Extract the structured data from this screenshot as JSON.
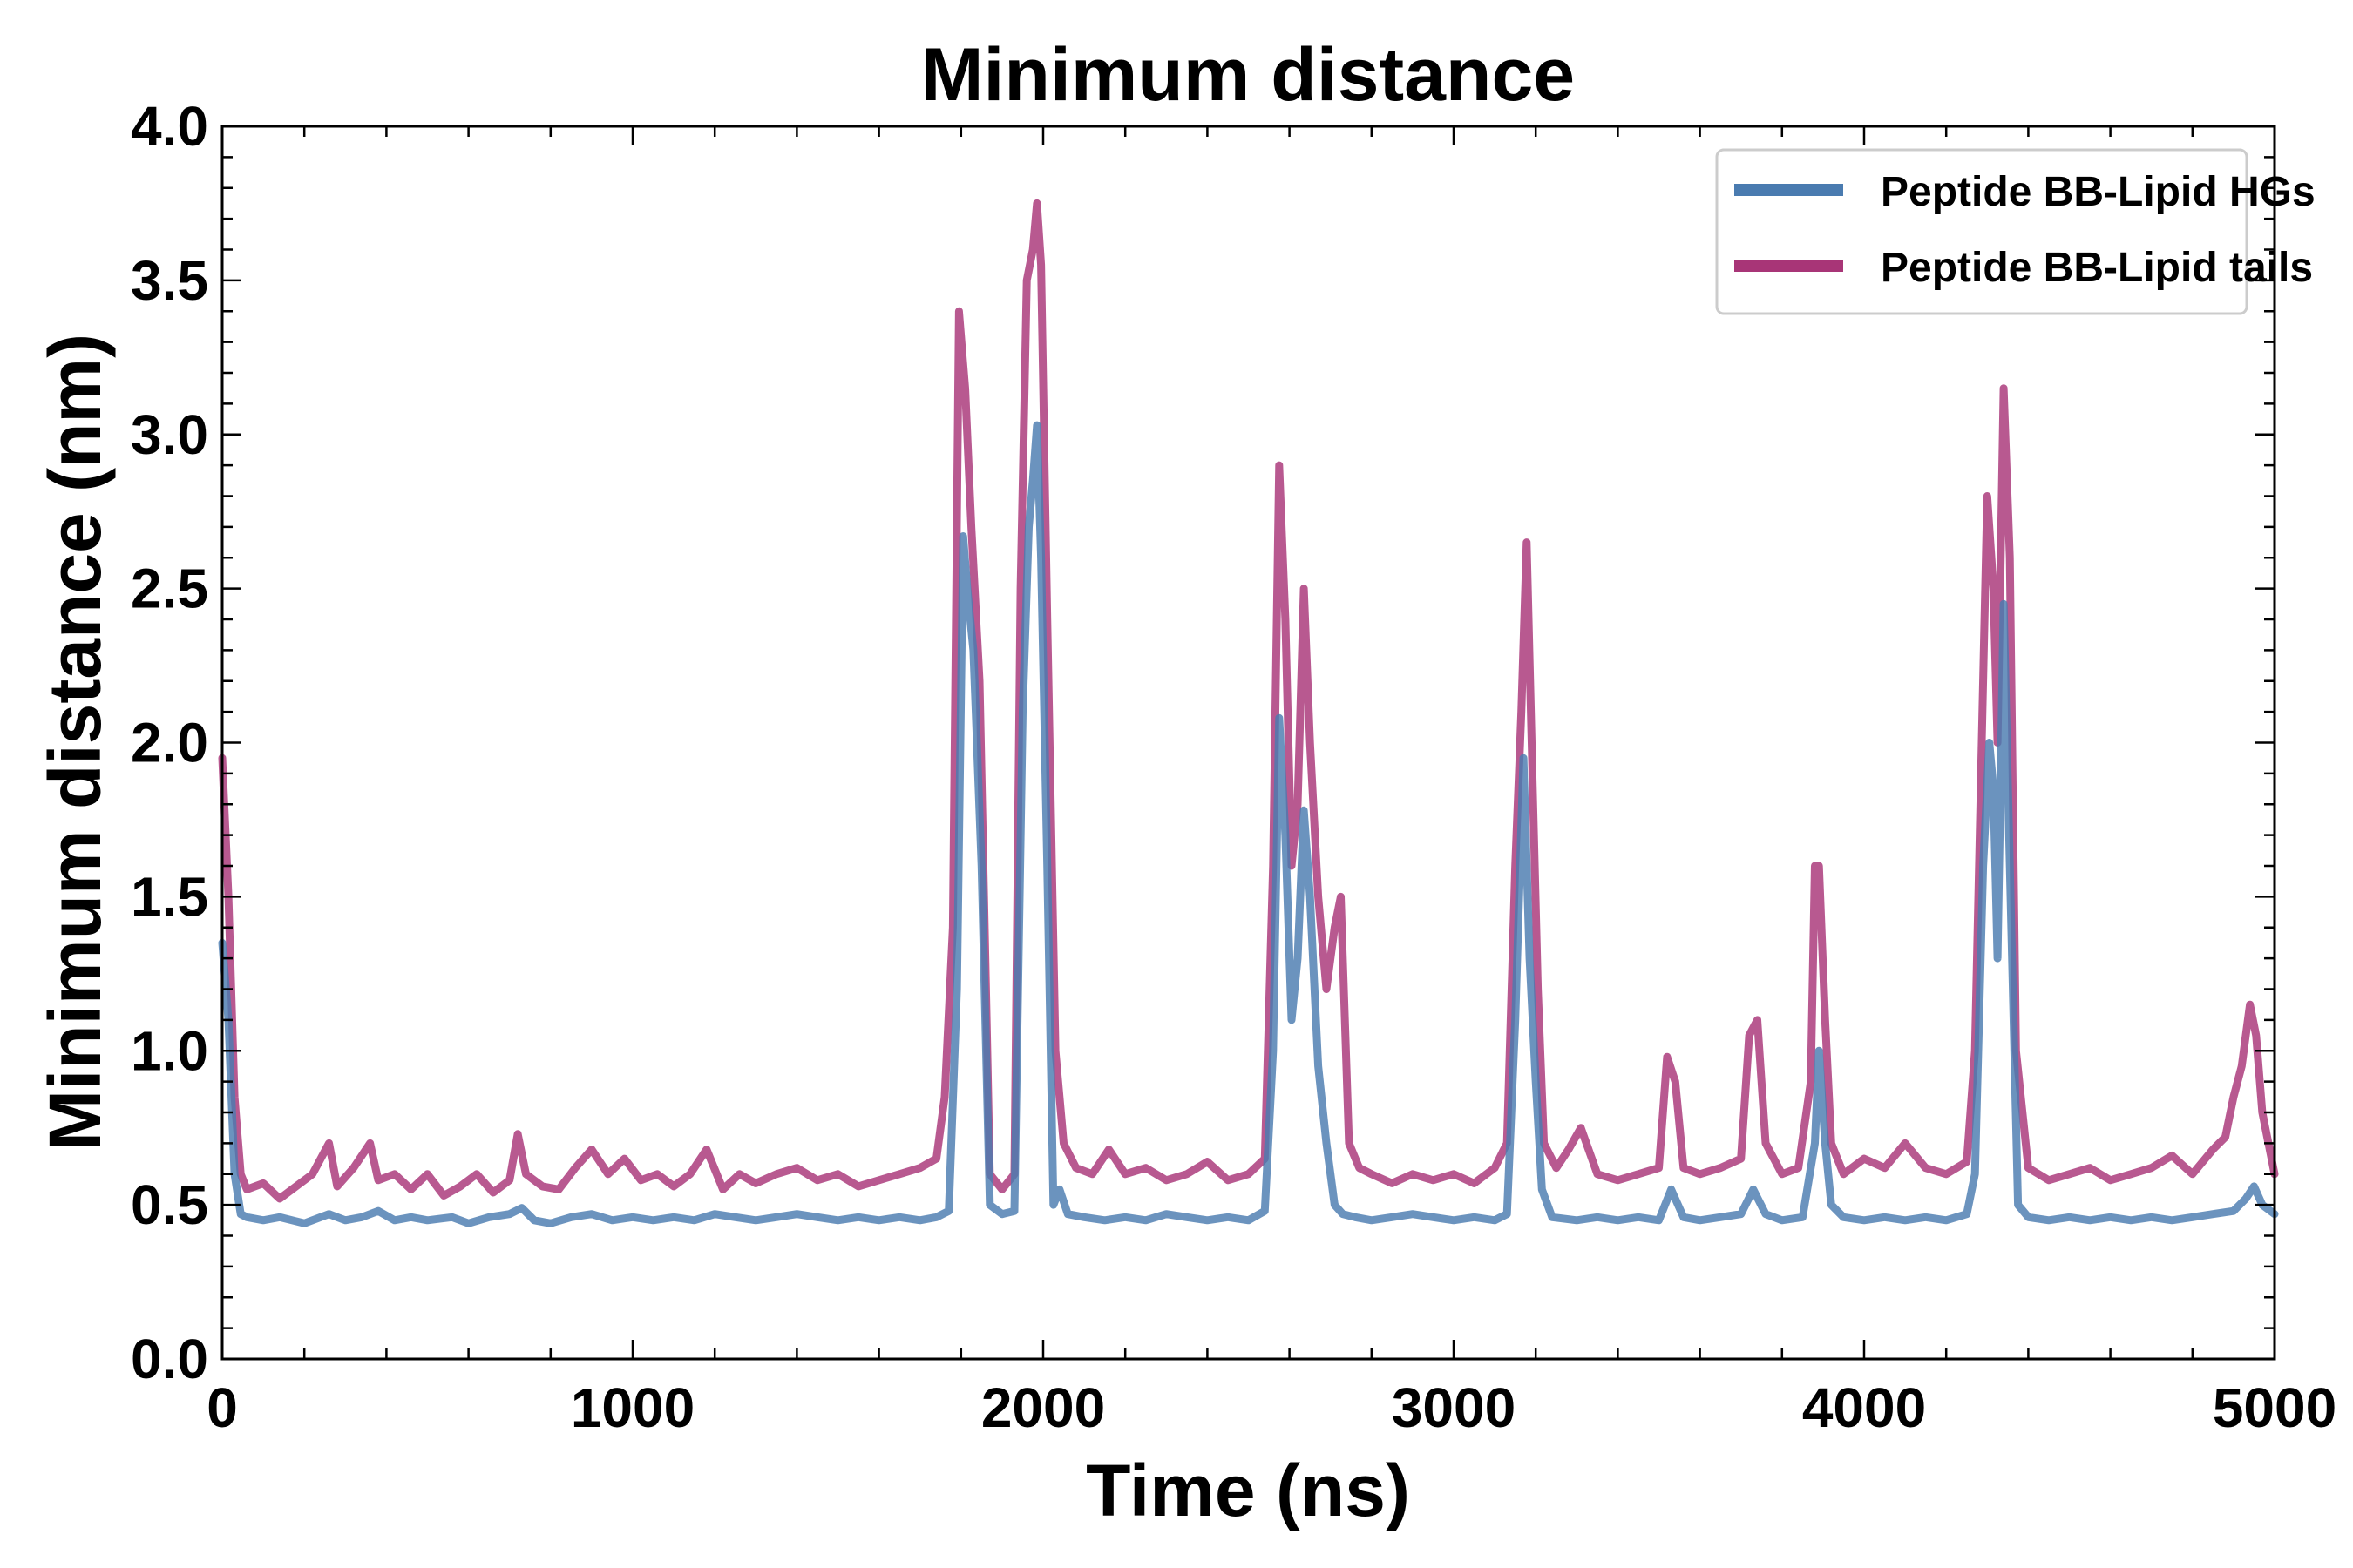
{
  "chart_data": {
    "type": "line",
    "title": "Minimum distance",
    "xlabel": "Time (ns)",
    "ylabel": "Minimum distance (nm)",
    "xlim": [
      0,
      5000
    ],
    "ylim": [
      0.0,
      4.0
    ],
    "xticks": [
      0,
      1000,
      2000,
      3000,
      4000,
      5000
    ],
    "xtick_labels": [
      "0",
      "1000",
      "2000",
      "3000",
      "4000",
      "5000"
    ],
    "yticks": [
      0.0,
      0.5,
      1.0,
      1.5,
      2.0,
      2.5,
      3.0,
      3.5,
      4.0
    ],
    "ytick_labels": [
      "0.0",
      "0.5",
      "1.0",
      "1.5",
      "2.0",
      "2.5",
      "3.0",
      "3.5",
      "4.0"
    ],
    "legend_position": "top-right",
    "grid": false,
    "series": [
      {
        "name": "Peptide BB-Lipid HGs",
        "color": "#4a7bb0",
        "points": [
          [
            0,
            1.35
          ],
          [
            15,
            1.1
          ],
          [
            30,
            0.6
          ],
          [
            45,
            0.47
          ],
          [
            60,
            0.46
          ],
          [
            100,
            0.45
          ],
          [
            140,
            0.46
          ],
          [
            200,
            0.44
          ],
          [
            260,
            0.47
          ],
          [
            300,
            0.45
          ],
          [
            340,
            0.46
          ],
          [
            380,
            0.48
          ],
          [
            420,
            0.45
          ],
          [
            460,
            0.46
          ],
          [
            500,
            0.45
          ],
          [
            560,
            0.46
          ],
          [
            600,
            0.44
          ],
          [
            650,
            0.46
          ],
          [
            700,
            0.47
          ],
          [
            730,
            0.49
          ],
          [
            760,
            0.45
          ],
          [
            800,
            0.44
          ],
          [
            850,
            0.46
          ],
          [
            900,
            0.47
          ],
          [
            950,
            0.45
          ],
          [
            1000,
            0.46
          ],
          [
            1050,
            0.45
          ],
          [
            1100,
            0.46
          ],
          [
            1150,
            0.45
          ],
          [
            1200,
            0.47
          ],
          [
            1250,
            0.46
          ],
          [
            1300,
            0.45
          ],
          [
            1350,
            0.46
          ],
          [
            1400,
            0.47
          ],
          [
            1450,
            0.46
          ],
          [
            1500,
            0.45
          ],
          [
            1550,
            0.46
          ],
          [
            1600,
            0.45
          ],
          [
            1650,
            0.46
          ],
          [
            1700,
            0.45
          ],
          [
            1740,
            0.46
          ],
          [
            1770,
            0.48
          ],
          [
            1790,
            1.2
          ],
          [
            1805,
            2.67
          ],
          [
            1815,
            2.5
          ],
          [
            1830,
            2.3
          ],
          [
            1850,
            1.6
          ],
          [
            1870,
            0.5
          ],
          [
            1900,
            0.47
          ],
          [
            1930,
            0.48
          ],
          [
            1950,
            2.1
          ],
          [
            1965,
            2.7
          ],
          [
            1975,
            2.85
          ],
          [
            1985,
            3.03
          ],
          [
            1995,
            2.6
          ],
          [
            2010,
            1.6
          ],
          [
            2025,
            0.5
          ],
          [
            2040,
            0.55
          ],
          [
            2060,
            0.47
          ],
          [
            2100,
            0.46
          ],
          [
            2150,
            0.45
          ],
          [
            2200,
            0.46
          ],
          [
            2250,
            0.45
          ],
          [
            2300,
            0.47
          ],
          [
            2350,
            0.46
          ],
          [
            2400,
            0.45
          ],
          [
            2450,
            0.46
          ],
          [
            2500,
            0.45
          ],
          [
            2540,
            0.48
          ],
          [
            2560,
            1.0
          ],
          [
            2575,
            2.08
          ],
          [
            2590,
            1.7
          ],
          [
            2605,
            1.1
          ],
          [
            2620,
            1.3
          ],
          [
            2635,
            1.78
          ],
          [
            2650,
            1.5
          ],
          [
            2670,
            0.95
          ],
          [
            2690,
            0.7
          ],
          [
            2710,
            0.5
          ],
          [
            2730,
            0.47
          ],
          [
            2760,
            0.46
          ],
          [
            2800,
            0.45
          ],
          [
            2850,
            0.46
          ],
          [
            2900,
            0.47
          ],
          [
            2950,
            0.46
          ],
          [
            3000,
            0.45
          ],
          [
            3050,
            0.46
          ],
          [
            3100,
            0.45
          ],
          [
            3130,
            0.47
          ],
          [
            3150,
            1.1
          ],
          [
            3170,
            1.95
          ],
          [
            3185,
            1.3
          ],
          [
            3200,
            0.9
          ],
          [
            3215,
            0.55
          ],
          [
            3240,
            0.46
          ],
          [
            3300,
            0.45
          ],
          [
            3350,
            0.46
          ],
          [
            3400,
            0.45
          ],
          [
            3450,
            0.46
          ],
          [
            3500,
            0.45
          ],
          [
            3530,
            0.55
          ],
          [
            3560,
            0.46
          ],
          [
            3600,
            0.45
          ],
          [
            3650,
            0.46
          ],
          [
            3700,
            0.47
          ],
          [
            3730,
            0.55
          ],
          [
            3760,
            0.47
          ],
          [
            3800,
            0.45
          ],
          [
            3850,
            0.46
          ],
          [
            3880,
            0.7
          ],
          [
            3890,
            1.0
          ],
          [
            3905,
            0.7
          ],
          [
            3920,
            0.5
          ],
          [
            3950,
            0.46
          ],
          [
            4000,
            0.45
          ],
          [
            4050,
            0.46
          ],
          [
            4100,
            0.45
          ],
          [
            4150,
            0.46
          ],
          [
            4200,
            0.45
          ],
          [
            4250,
            0.47
          ],
          [
            4270,
            0.6
          ],
          [
            4290,
            1.6
          ],
          [
            4305,
            2.0
          ],
          [
            4315,
            1.85
          ],
          [
            4325,
            1.3
          ],
          [
            4340,
            2.45
          ],
          [
            4355,
            1.6
          ],
          [
            4375,
            0.5
          ],
          [
            4400,
            0.46
          ],
          [
            4450,
            0.45
          ],
          [
            4500,
            0.46
          ],
          [
            4550,
            0.45
          ],
          [
            4600,
            0.46
          ],
          [
            4650,
            0.45
          ],
          [
            4700,
            0.46
          ],
          [
            4750,
            0.45
          ],
          [
            4800,
            0.46
          ],
          [
            4850,
            0.47
          ],
          [
            4900,
            0.48
          ],
          [
            4930,
            0.52
          ],
          [
            4950,
            0.56
          ],
          [
            4970,
            0.5
          ],
          [
            5000,
            0.47
          ]
        ]
      },
      {
        "name": "Peptide BB-Lipid tails",
        "color": "#a83577",
        "points": [
          [
            0,
            1.95
          ],
          [
            15,
            1.5
          ],
          [
            30,
            0.85
          ],
          [
            45,
            0.6
          ],
          [
            60,
            0.55
          ],
          [
            100,
            0.57
          ],
          [
            140,
            0.52
          ],
          [
            180,
            0.56
          ],
          [
            220,
            0.6
          ],
          [
            260,
            0.7
          ],
          [
            280,
            0.56
          ],
          [
            320,
            0.62
          ],
          [
            360,
            0.7
          ],
          [
            380,
            0.58
          ],
          [
            420,
            0.6
          ],
          [
            460,
            0.55
          ],
          [
            500,
            0.6
          ],
          [
            540,
            0.53
          ],
          [
            580,
            0.56
          ],
          [
            620,
            0.6
          ],
          [
            660,
            0.54
          ],
          [
            700,
            0.58
          ],
          [
            720,
            0.73
          ],
          [
            740,
            0.6
          ],
          [
            780,
            0.56
          ],
          [
            820,
            0.55
          ],
          [
            860,
            0.62
          ],
          [
            900,
            0.68
          ],
          [
            940,
            0.6
          ],
          [
            980,
            0.65
          ],
          [
            1020,
            0.58
          ],
          [
            1060,
            0.6
          ],
          [
            1100,
            0.56
          ],
          [
            1140,
            0.6
          ],
          [
            1180,
            0.68
          ],
          [
            1220,
            0.55
          ],
          [
            1260,
            0.6
          ],
          [
            1300,
            0.57
          ],
          [
            1350,
            0.6
          ],
          [
            1400,
            0.62
          ],
          [
            1450,
            0.58
          ],
          [
            1500,
            0.6
          ],
          [
            1550,
            0.56
          ],
          [
            1600,
            0.58
          ],
          [
            1650,
            0.6
          ],
          [
            1700,
            0.62
          ],
          [
            1740,
            0.65
          ],
          [
            1760,
            0.85
          ],
          [
            1780,
            1.4
          ],
          [
            1795,
            3.4
          ],
          [
            1810,
            3.15
          ],
          [
            1825,
            2.7
          ],
          [
            1845,
            2.2
          ],
          [
            1870,
            0.6
          ],
          [
            1900,
            0.55
          ],
          [
            1930,
            0.6
          ],
          [
            1945,
            2.5
          ],
          [
            1960,
            3.5
          ],
          [
            1975,
            3.6
          ],
          [
            1985,
            3.75
          ],
          [
            1995,
            3.55
          ],
          [
            2010,
            2.4
          ],
          [
            2030,
            1.0
          ],
          [
            2050,
            0.7
          ],
          [
            2080,
            0.62
          ],
          [
            2120,
            0.6
          ],
          [
            2160,
            0.68
          ],
          [
            2200,
            0.6
          ],
          [
            2250,
            0.62
          ],
          [
            2300,
            0.58
          ],
          [
            2350,
            0.6
          ],
          [
            2400,
            0.64
          ],
          [
            2450,
            0.58
          ],
          [
            2500,
            0.6
          ],
          [
            2540,
            0.65
          ],
          [
            2560,
            1.6
          ],
          [
            2575,
            2.9
          ],
          [
            2590,
            2.4
          ],
          [
            2605,
            1.6
          ],
          [
            2620,
            1.8
          ],
          [
            2635,
            2.5
          ],
          [
            2650,
            2.0
          ],
          [
            2670,
            1.5
          ],
          [
            2690,
            1.2
          ],
          [
            2710,
            1.4
          ],
          [
            2725,
            1.5
          ],
          [
            2745,
            0.7
          ],
          [
            2770,
            0.62
          ],
          [
            2800,
            0.6
          ],
          [
            2850,
            0.57
          ],
          [
            2900,
            0.6
          ],
          [
            2950,
            0.58
          ],
          [
            3000,
            0.6
          ],
          [
            3050,
            0.57
          ],
          [
            3100,
            0.62
          ],
          [
            3130,
            0.7
          ],
          [
            3150,
            1.6
          ],
          [
            3165,
            2.1
          ],
          [
            3178,
            2.65
          ],
          [
            3190,
            2.0
          ],
          [
            3205,
            1.2
          ],
          [
            3220,
            0.7
          ],
          [
            3250,
            0.62
          ],
          [
            3280,
            0.68
          ],
          [
            3310,
            0.75
          ],
          [
            3350,
            0.6
          ],
          [
            3400,
            0.58
          ],
          [
            3450,
            0.6
          ],
          [
            3500,
            0.62
          ],
          [
            3520,
            0.98
          ],
          [
            3540,
            0.9
          ],
          [
            3560,
            0.62
          ],
          [
            3600,
            0.6
          ],
          [
            3650,
            0.62
          ],
          [
            3700,
            0.65
          ],
          [
            3720,
            1.05
          ],
          [
            3740,
            1.1
          ],
          [
            3760,
            0.7
          ],
          [
            3800,
            0.6
          ],
          [
            3840,
            0.62
          ],
          [
            3870,
            0.9
          ],
          [
            3880,
            1.6
          ],
          [
            3890,
            1.6
          ],
          [
            3905,
            1.1
          ],
          [
            3920,
            0.7
          ],
          [
            3950,
            0.6
          ],
          [
            4000,
            0.65
          ],
          [
            4050,
            0.62
          ],
          [
            4100,
            0.7
          ],
          [
            4150,
            0.62
          ],
          [
            4200,
            0.6
          ],
          [
            4250,
            0.64
          ],
          [
            4270,
            1.0
          ],
          [
            4285,
            1.9
          ],
          [
            4300,
            2.8
          ],
          [
            4315,
            2.5
          ],
          [
            4325,
            2.0
          ],
          [
            4340,
            3.15
          ],
          [
            4355,
            2.6
          ],
          [
            4370,
            1.0
          ],
          [
            4400,
            0.62
          ],
          [
            4450,
            0.58
          ],
          [
            4500,
            0.6
          ],
          [
            4550,
            0.62
          ],
          [
            4600,
            0.58
          ],
          [
            4650,
            0.6
          ],
          [
            4700,
            0.62
          ],
          [
            4750,
            0.66
          ],
          [
            4800,
            0.6
          ],
          [
            4850,
            0.68
          ],
          [
            4880,
            0.72
          ],
          [
            4900,
            0.85
          ],
          [
            4920,
            0.95
          ],
          [
            4940,
            1.15
          ],
          [
            4955,
            1.05
          ],
          [
            4970,
            0.8
          ],
          [
            5000,
            0.6
          ]
        ]
      }
    ]
  }
}
